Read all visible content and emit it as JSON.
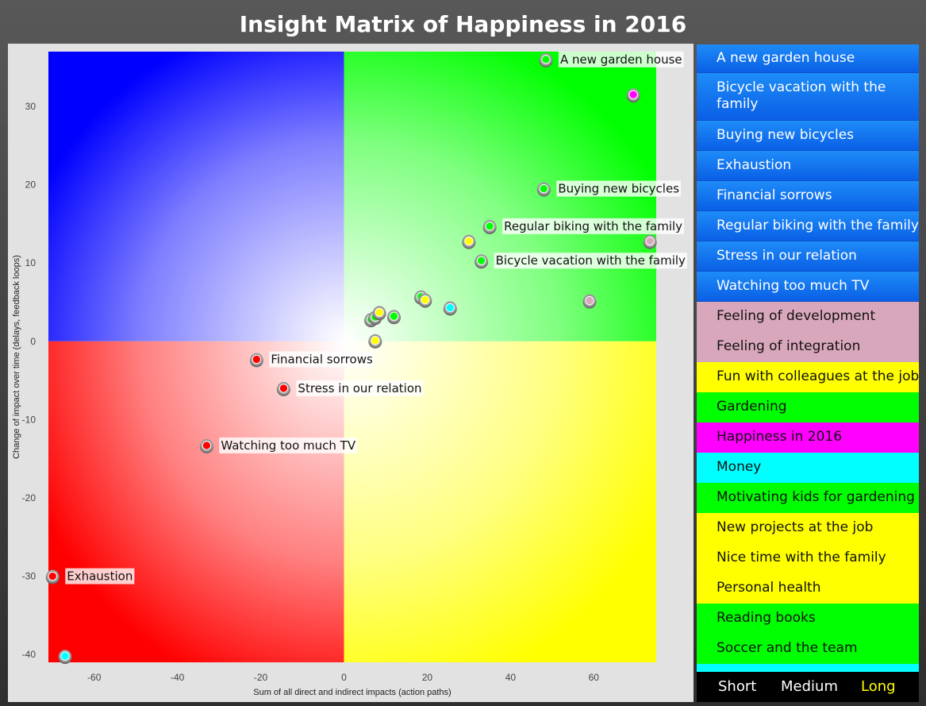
{
  "title": "Insight Matrix of Happiness in 2016",
  "chart_data": {
    "type": "scatter",
    "title": "Insight Matrix of Happiness in 2016",
    "xlabel": "Sum of all direct and indirect impacts (action paths)",
    "ylabel": "Change of impact over time (delays, feedback loops)",
    "xlim": [
      -71,
      75
    ],
    "ylim": [
      -41,
      37
    ],
    "x_ticks": [
      -60,
      -40,
      -20,
      0,
      20,
      40,
      60
    ],
    "y_ticks": [
      30,
      20,
      10,
      0,
      -10,
      -20,
      -30,
      -40
    ],
    "quadrants": {
      "top_left": "#0000ff",
      "top_right": "#00ff00",
      "bottom_left": "#ff0000",
      "bottom_right": "#ffff00"
    },
    "points": [
      {
        "x": 48.5,
        "y": 36,
        "color": "#00ff00",
        "label": "A new garden house"
      },
      {
        "x": 69.5,
        "y": 31.5,
        "color": "#ff00ff",
        "label": ""
      },
      {
        "x": 48,
        "y": 19.5,
        "color": "#00ff00",
        "label": "Buying new bicycles"
      },
      {
        "x": 35,
        "y": 14.7,
        "color": "#00ff00",
        "label": "Regular biking with the family"
      },
      {
        "x": 30,
        "y": 12.8,
        "color": "#ffff00",
        "label": ""
      },
      {
        "x": 73.5,
        "y": 12.8,
        "color": "#d9a7bc",
        "label": ""
      },
      {
        "x": 33,
        "y": 10.3,
        "color": "#00ff00",
        "label": "Bicycle vacation with the family"
      },
      {
        "x": 18.5,
        "y": 5.7,
        "color": "#00ff00",
        "label": ""
      },
      {
        "x": 19.5,
        "y": 5.3,
        "color": "#ffff00",
        "label": ""
      },
      {
        "x": 25.5,
        "y": 4.3,
        "color": "#00ffff",
        "label": ""
      },
      {
        "x": 59,
        "y": 5.2,
        "color": "#d9a7bc",
        "label": ""
      },
      {
        "x": 6.5,
        "y": 2.8,
        "color": "#00ff00",
        "label": ""
      },
      {
        "x": 7.5,
        "y": 3.1,
        "color": "#00ff00",
        "label": ""
      },
      {
        "x": 8.5,
        "y": 3.7,
        "color": "#ffff00",
        "label": ""
      },
      {
        "x": 12,
        "y": 3.2,
        "color": "#00ff00",
        "label": ""
      },
      {
        "x": 7.5,
        "y": 0.1,
        "color": "#ffff00",
        "label": ""
      },
      {
        "x": -21,
        "y": -2.3,
        "color": "#ff0000",
        "label": "Financial sorrows"
      },
      {
        "x": -14.5,
        "y": -6.0,
        "color": "#ff0000",
        "label": "Stress in our relation"
      },
      {
        "x": -33,
        "y": -13.3,
        "color": "#ff0000",
        "label": "Watching too much TV"
      },
      {
        "x": -70,
        "y": -30.0,
        "color": "#ff0000",
        "label": "Exhaustion"
      },
      {
        "x": -67,
        "y": -40.2,
        "color": "#00ffff",
        "label": ""
      }
    ]
  },
  "legend": {
    "items": [
      {
        "label": "A new garden house",
        "bg": "blue"
      },
      {
        "label": "Bicycle vacation with the family",
        "bg": "blue"
      },
      {
        "label": "Buying new bicycles",
        "bg": "blue"
      },
      {
        "label": "Exhaustion",
        "bg": "blue"
      },
      {
        "label": "Financial sorrows",
        "bg": "blue"
      },
      {
        "label": "Regular biking with the family",
        "bg": "blue"
      },
      {
        "label": "Stress in our relation",
        "bg": "blue"
      },
      {
        "label": "Watching too much TV",
        "bg": "blue"
      },
      {
        "label": "Feeling of development",
        "bg": "#d9a7bc"
      },
      {
        "label": "Feeling of integration",
        "bg": "#d9a7bc"
      },
      {
        "label": "Fun with colleagues at the job",
        "bg": "#ffff00"
      },
      {
        "label": "Gardening",
        "bg": "#00ff00"
      },
      {
        "label": "Happiness in 2016",
        "bg": "#ff00ff"
      },
      {
        "label": "Money",
        "bg": "#00ffff"
      },
      {
        "label": "Motivating kids for gardening",
        "bg": "#00ff00"
      },
      {
        "label": "New projects at the job",
        "bg": "#ffff00"
      },
      {
        "label": "Nice time with the family",
        "bg": "#ffff00"
      },
      {
        "label": "Personal health",
        "bg": "#ffff00"
      },
      {
        "label": "Reading books",
        "bg": "#00ff00"
      },
      {
        "label": "Soccer and the team",
        "bg": "#00ff00"
      },
      {
        "label": "",
        "bg": "#00ffff"
      }
    ]
  },
  "range_toggle": {
    "short": "Short",
    "medium": "Medium",
    "long": "Long",
    "selected": "long",
    "selected_color": "#ffff00"
  }
}
